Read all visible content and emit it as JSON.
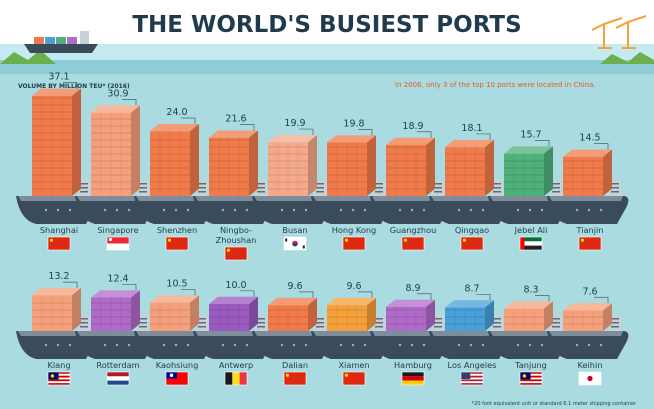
{
  "title": "THE WORLD'S BUSIEST PORTS",
  "subtitle": "VOLUME BY MILLION TEU* (2016)",
  "note": "In 2006, only 3 of the top 10 ports were located in China.",
  "footnote": "*20 foot equivalent unit or standard 6.1 meter shipping container",
  "colors": {
    "background": "#a9dbe0",
    "title": "#1f3b4d",
    "note": "#e45a2a",
    "hull": "#3a4c5c",
    "deck": "#7d8d99",
    "cabin": "#c7d2d8",
    "leader": "#4d5f6b"
  },
  "chart_data": {
    "type": "bar",
    "unit": "million TEU",
    "year": 2016,
    "ylim": [
      0,
      40
    ],
    "categories": [
      "Shanghai",
      "Singapore",
      "Shenzhen",
      "Ningbo-Zhoushan",
      "Busan",
      "Hong Kong",
      "Guangzhou",
      "Qingqao",
      "Jebel Ali",
      "Tianjin",
      "Klang",
      "Rotterdam",
      "Kaohsiung",
      "Antwerp",
      "Dalian",
      "Xiamen",
      "Hamburg",
      "Los Angeles",
      "Tanjung",
      "Keihin"
    ],
    "series": [
      {
        "values": [
          37.1,
          30.9,
          24.0,
          21.6,
          19.9,
          19.8,
          18.9,
          18.1,
          15.7,
          14.5,
          13.2,
          12.4,
          10.5,
          10.0,
          9.6,
          9.6,
          8.9,
          8.7,
          8.3,
          7.6
        ]
      }
    ],
    "value_labels": [
      "37.1",
      "30.9",
      "24.0",
      "21.6",
      "19.9",
      "19.8",
      "18.9",
      "18.1",
      "15.7",
      "14.5",
      "13.2",
      "12.4",
      "10.5",
      "10.0",
      "9.6",
      "9.6",
      "8.9",
      "8.7",
      "8.3",
      "7.6"
    ],
    "port_labels": [
      [
        "Shanghai"
      ],
      [
        "Singapore"
      ],
      [
        "Shenzhen"
      ],
      [
        "Ningbo-",
        "Zhoushan"
      ],
      [
        "Busan"
      ],
      [
        "Hong Kong"
      ],
      [
        "Guangzhou"
      ],
      [
        "Qingqao"
      ],
      [
        "Jebel Ali"
      ],
      [
        "Tianjin"
      ],
      [
        "Klang"
      ],
      [
        "Rotterdam"
      ],
      [
        "Kaohsiung"
      ],
      [
        "Antwerp"
      ],
      [
        "Dalian"
      ],
      [
        "Xiamen"
      ],
      [
        "Hamburg"
      ],
      [
        "Los Angeles"
      ],
      [
        "Tanjung"
      ],
      [
        "Keihin"
      ]
    ],
    "container_colors": [
      "#f07a4a",
      "#f5a07a",
      "#f07a4a",
      "#f07a4a",
      "#f5a98a",
      "#f07a4a",
      "#f07a4a",
      "#f07a4a",
      "#4fb07a",
      "#f07a4a",
      "#f5a07a",
      "#b06ac8",
      "#f5a07a",
      "#9a5ac0",
      "#f07a4a",
      "#f5a03a",
      "#b06ac8",
      "#4aa0d8",
      "#f5a07a",
      "#f5a07a"
    ],
    "flags": [
      "china",
      "singapore",
      "china",
      "china",
      "south-korea",
      "china",
      "china",
      "china",
      "uae",
      "china",
      "malaysia",
      "netherlands",
      "taiwan",
      "belgium",
      "china",
      "china",
      "germany",
      "usa",
      "malaysia",
      "japan"
    ],
    "grid": false,
    "legend": "none"
  }
}
